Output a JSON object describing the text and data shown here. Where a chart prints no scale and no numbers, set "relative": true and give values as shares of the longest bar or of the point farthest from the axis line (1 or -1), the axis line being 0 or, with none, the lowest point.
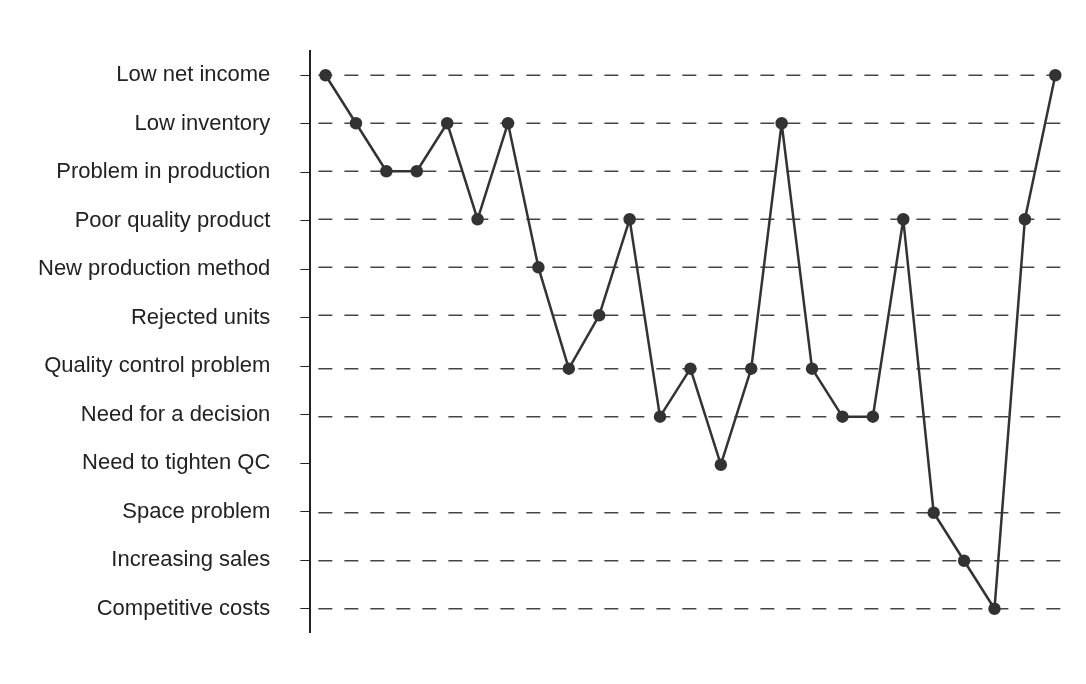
{
  "chart_data": {
    "type": "line",
    "relative": true,
    "categories": [
      null,
      null,
      null,
      null,
      null,
      null,
      null,
      null,
      null,
      null,
      null,
      null,
      null,
      null,
      null,
      null,
      null,
      null,
      null,
      null,
      null,
      null,
      null,
      null,
      null
    ],
    "annotations": [
      "Low net income",
      "Low inventory",
      "Problem in production",
      "Poor quality product",
      "New production method",
      "Rejected units",
      "Quality control problem",
      "Need for a decision",
      "Need to tighten QC",
      "Space problem",
      "Increasing sales",
      "Competitive costs"
    ],
    "series": [
      {
        "color": "#333333",
        "values": [
          1,
          0.91,
          0.82,
          0.82,
          0.91,
          0.73,
          0.91,
          0.64,
          0.45,
          0.55,
          0.73,
          0.36,
          0.45,
          0.27,
          0.45,
          0.91,
          0.45,
          0.36,
          0.36,
          0.73,
          0.18,
          0.09,
          0,
          0.73,
          1
        ]
      }
    ],
    "ref_lines": [
      {
        "axis": "y",
        "value": 1,
        "line_style": "dashed"
      },
      {
        "axis": "y",
        "value": 0.91,
        "line_style": "dashed"
      },
      {
        "axis": "y",
        "value": 0.82,
        "line_style": "dashed"
      },
      {
        "axis": "y",
        "value": 0.73,
        "line_style": "dashed"
      },
      {
        "axis": "y",
        "value": 0.64,
        "line_style": "dashed"
      },
      {
        "axis": "y",
        "value": 0.55,
        "line_style": "dashed"
      },
      {
        "axis": "y",
        "value": 0.45,
        "line_style": "dashed"
      },
      {
        "axis": "y",
        "value": 0.36,
        "line_style": "dashed"
      },
      {
        "axis": "y",
        "value": 0.18,
        "line_style": "dashed"
      },
      {
        "axis": "y",
        "value": 0.09,
        "line_style": "dashed"
      },
      {
        "axis": "y",
        "value": 0,
        "line_style": "dashed"
      }
    ],
    "marker": "circle",
    "line_style": "solid",
    "grid": false,
    "legend": false,
    "tick_labels": "y"
  }
}
